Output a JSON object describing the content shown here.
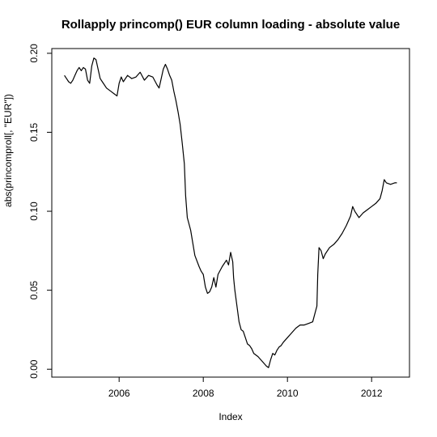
{
  "chart_data": {
    "type": "line",
    "title": "Rollapply princomp() EUR column loading - absolute value",
    "xlabel": "Index",
    "ylabel": "abs(princomproll[, \"EUR\"])",
    "xlim": [
      2004.4,
      2012.9
    ],
    "ylim": [
      -0.005,
      0.203
    ],
    "x_ticks": [
      2006,
      2008,
      2010,
      2012
    ],
    "x_tick_labels": [
      "2006",
      "2008",
      "2010",
      "2012"
    ],
    "y_ticks": [
      0.0,
      0.05,
      0.1,
      0.15,
      0.2
    ],
    "y_tick_labels": [
      "0.00",
      "0.05",
      "0.10",
      "0.15",
      "0.20"
    ],
    "grid": false,
    "series": [
      {
        "color": "#000000",
        "points": [
          [
            2004.7,
            0.186
          ],
          [
            2004.75,
            0.184
          ],
          [
            2004.8,
            0.182
          ],
          [
            2004.85,
            0.181
          ],
          [
            2004.9,
            0.183
          ],
          [
            2004.95,
            0.186
          ],
          [
            2005.0,
            0.189
          ],
          [
            2005.05,
            0.191
          ],
          [
            2005.1,
            0.189
          ],
          [
            2005.15,
            0.191
          ],
          [
            2005.2,
            0.19
          ],
          [
            2005.25,
            0.183
          ],
          [
            2005.3,
            0.181
          ],
          [
            2005.35,
            0.192
          ],
          [
            2005.4,
            0.197
          ],
          [
            2005.45,
            0.196
          ],
          [
            2005.5,
            0.19
          ],
          [
            2005.55,
            0.184
          ],
          [
            2005.6,
            0.182
          ],
          [
            2005.7,
            0.178
          ],
          [
            2005.8,
            0.176
          ],
          [
            2005.9,
            0.174
          ],
          [
            2005.95,
            0.173
          ],
          [
            2006.0,
            0.181
          ],
          [
            2006.05,
            0.185
          ],
          [
            2006.1,
            0.182
          ],
          [
            2006.2,
            0.186
          ],
          [
            2006.3,
            0.184
          ],
          [
            2006.4,
            0.185
          ],
          [
            2006.5,
            0.188
          ],
          [
            2006.6,
            0.183
          ],
          [
            2006.7,
            0.186
          ],
          [
            2006.8,
            0.185
          ],
          [
            2006.9,
            0.18
          ],
          [
            2006.95,
            0.178
          ],
          [
            2007.0,
            0.184
          ],
          [
            2007.05,
            0.19
          ],
          [
            2007.1,
            0.193
          ],
          [
            2007.15,
            0.19
          ],
          [
            2007.2,
            0.186
          ],
          [
            2007.25,
            0.183
          ],
          [
            2007.3,
            0.176
          ],
          [
            2007.35,
            0.17
          ],
          [
            2007.4,
            0.163
          ],
          [
            2007.45,
            0.155
          ],
          [
            2007.5,
            0.143
          ],
          [
            2007.55,
            0.13
          ],
          [
            2007.58,
            0.11
          ],
          [
            2007.62,
            0.096
          ],
          [
            2007.7,
            0.088
          ],
          [
            2007.75,
            0.08
          ],
          [
            2007.8,
            0.072
          ],
          [
            2007.9,
            0.065
          ],
          [
            2007.95,
            0.062
          ],
          [
            2008.0,
            0.06
          ],
          [
            2008.05,
            0.052
          ],
          [
            2008.1,
            0.048
          ],
          [
            2008.15,
            0.049
          ],
          [
            2008.2,
            0.052
          ],
          [
            2008.25,
            0.058
          ],
          [
            2008.3,
            0.052
          ],
          [
            2008.35,
            0.06
          ],
          [
            2008.45,
            0.065
          ],
          [
            2008.55,
            0.069
          ],
          [
            2008.6,
            0.066
          ],
          [
            2008.65,
            0.074
          ],
          [
            2008.7,
            0.068
          ],
          [
            2008.72,
            0.058
          ],
          [
            2008.75,
            0.05
          ],
          [
            2008.8,
            0.04
          ],
          [
            2008.85,
            0.03
          ],
          [
            2008.9,
            0.025
          ],
          [
            2008.95,
            0.024
          ],
          [
            2009.0,
            0.02
          ],
          [
            2009.05,
            0.016
          ],
          [
            2009.1,
            0.015
          ],
          [
            2009.15,
            0.013
          ],
          [
            2009.2,
            0.01
          ],
          [
            2009.3,
            0.008
          ],
          [
            2009.4,
            0.005
          ],
          [
            2009.5,
            0.002
          ],
          [
            2009.55,
            0.001
          ],
          [
            2009.6,
            0.006
          ],
          [
            2009.65,
            0.01
          ],
          [
            2009.7,
            0.009
          ],
          [
            2009.75,
            0.012
          ],
          [
            2009.8,
            0.014
          ],
          [
            2009.85,
            0.015
          ],
          [
            2009.9,
            0.017
          ],
          [
            2010.0,
            0.02
          ],
          [
            2010.1,
            0.023
          ],
          [
            2010.2,
            0.026
          ],
          [
            2010.3,
            0.028
          ],
          [
            2010.4,
            0.028
          ],
          [
            2010.5,
            0.029
          ],
          [
            2010.6,
            0.03
          ],
          [
            2010.7,
            0.04
          ],
          [
            2010.72,
            0.06
          ],
          [
            2010.75,
            0.077
          ],
          [
            2010.8,
            0.075
          ],
          [
            2010.85,
            0.07
          ],
          [
            2010.9,
            0.073
          ],
          [
            2011.0,
            0.077
          ],
          [
            2011.1,
            0.079
          ],
          [
            2011.2,
            0.082
          ],
          [
            2011.3,
            0.086
          ],
          [
            2011.4,
            0.091
          ],
          [
            2011.5,
            0.097
          ],
          [
            2011.55,
            0.103
          ],
          [
            2011.6,
            0.1
          ],
          [
            2011.7,
            0.096
          ],
          [
            2011.8,
            0.099
          ],
          [
            2011.9,
            0.101
          ],
          [
            2012.0,
            0.103
          ],
          [
            2012.1,
            0.105
          ],
          [
            2012.2,
            0.108
          ],
          [
            2012.25,
            0.113
          ],
          [
            2012.3,
            0.12
          ],
          [
            2012.35,
            0.118
          ],
          [
            2012.45,
            0.117
          ],
          [
            2012.55,
            0.118
          ],
          [
            2012.6,
            0.118
          ]
        ]
      }
    ]
  }
}
